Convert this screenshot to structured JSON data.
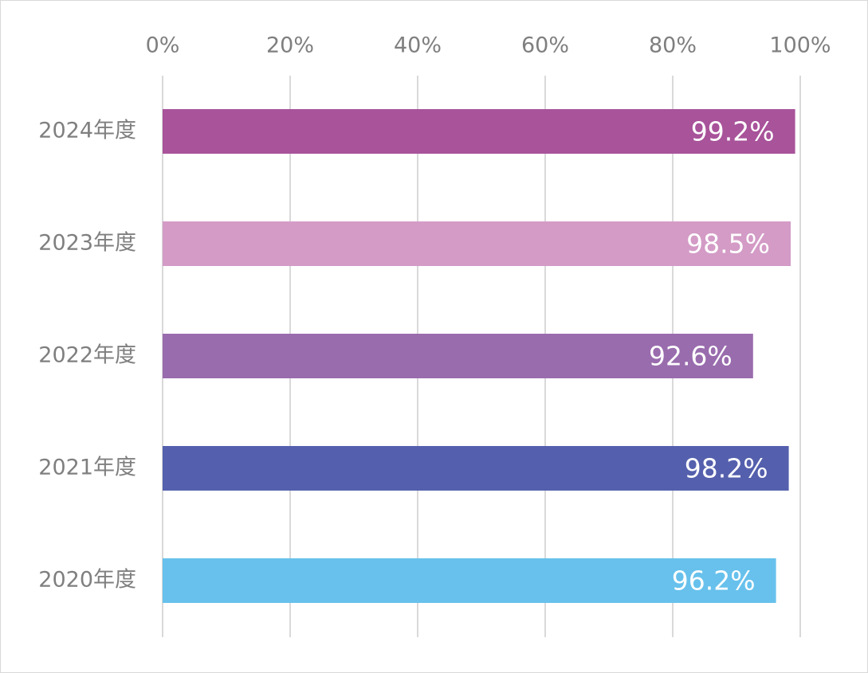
{
  "chart_data": {
    "type": "bar",
    "orientation": "horizontal",
    "categories": [
      "2024年度",
      "2023年度",
      "2022年度",
      "2021年度",
      "2020年度"
    ],
    "values": [
      99.2,
      98.5,
      92.6,
      98.2,
      96.2
    ],
    "data_labels": [
      "99.2%",
      "98.5%",
      "92.6%",
      "98.2%",
      "96.2%"
    ],
    "bar_colors": [
      "#a8539a",
      "#d39bc6",
      "#996cad",
      "#5460ad",
      "#67c1ec"
    ],
    "x_ticks": [
      0,
      20,
      40,
      60,
      80,
      100
    ],
    "x_tick_labels": [
      "0%",
      "20%",
      "40%",
      "60%",
      "80%",
      "100%"
    ],
    "xlim": [
      0,
      100
    ],
    "x_axis_position": "top",
    "grid": true,
    "title": "",
    "xlabel": "",
    "ylabel": ""
  }
}
